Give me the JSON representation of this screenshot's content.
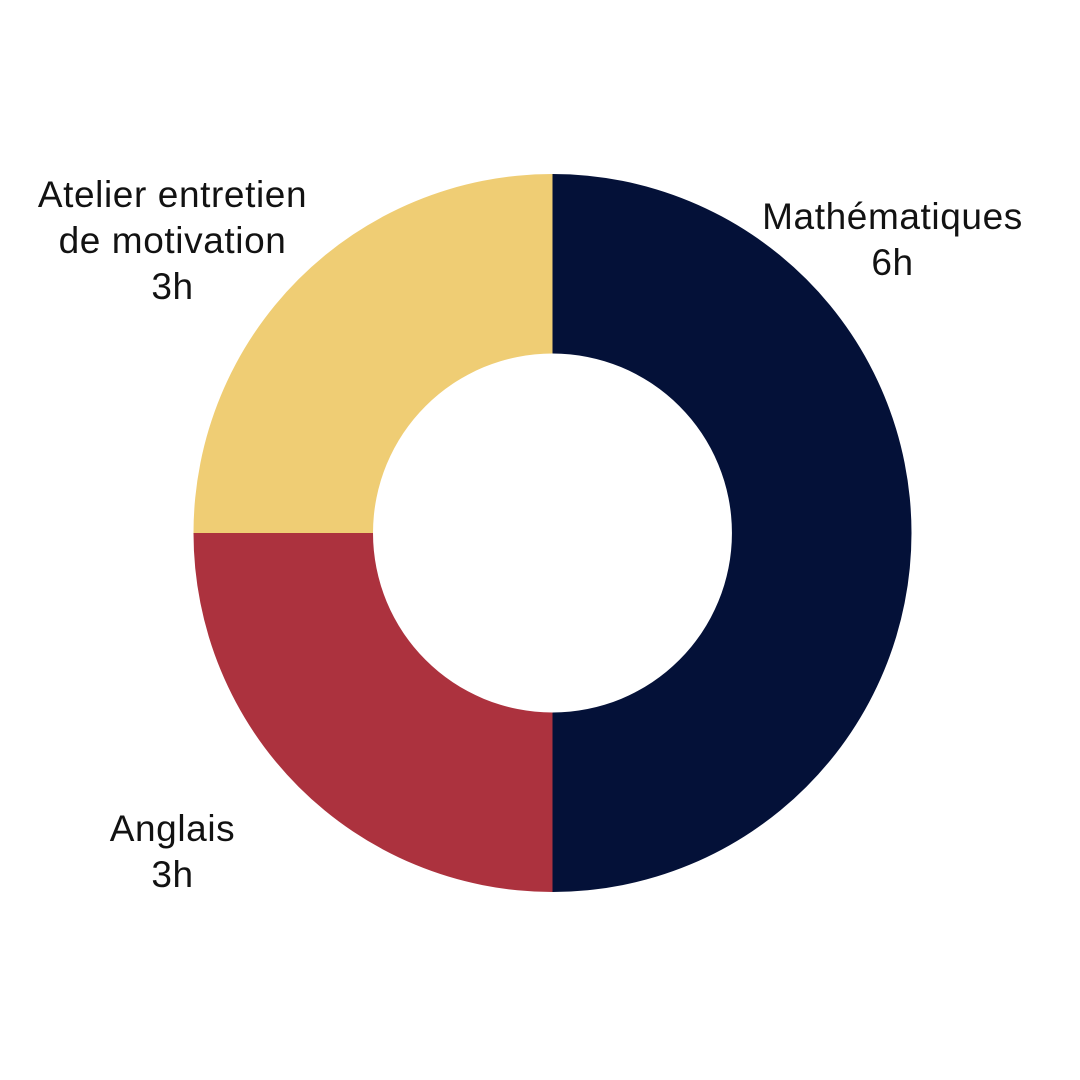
{
  "chart_data": {
    "type": "pie",
    "subtype": "donut",
    "title": "",
    "unit": "h",
    "total_hours": 12,
    "inner_radius_ratio": 0.5,
    "start_angle_deg": 0,
    "clockwise": true,
    "legend_position": "none",
    "background_color": "#ffffff",
    "label_text_color": "#121212",
    "segments": [
      {
        "label": "Mathématiques",
        "label_lines": [
          "Mathématiques"
        ],
        "hours": 6,
        "hours_label": "6h",
        "fraction": 0.5,
        "color": "#041138"
      },
      {
        "label": "Anglais",
        "label_lines": [
          "Anglais"
        ],
        "hours": 3,
        "hours_label": "3h",
        "fraction": 0.25,
        "color": "#AC323E"
      },
      {
        "label": "Atelier entretien de motivation",
        "label_lines": [
          "Atelier entretien",
          "de motivation"
        ],
        "hours": 3,
        "hours_label": "3h",
        "fraction": 0.25,
        "color": "#EFCD74"
      }
    ]
  }
}
